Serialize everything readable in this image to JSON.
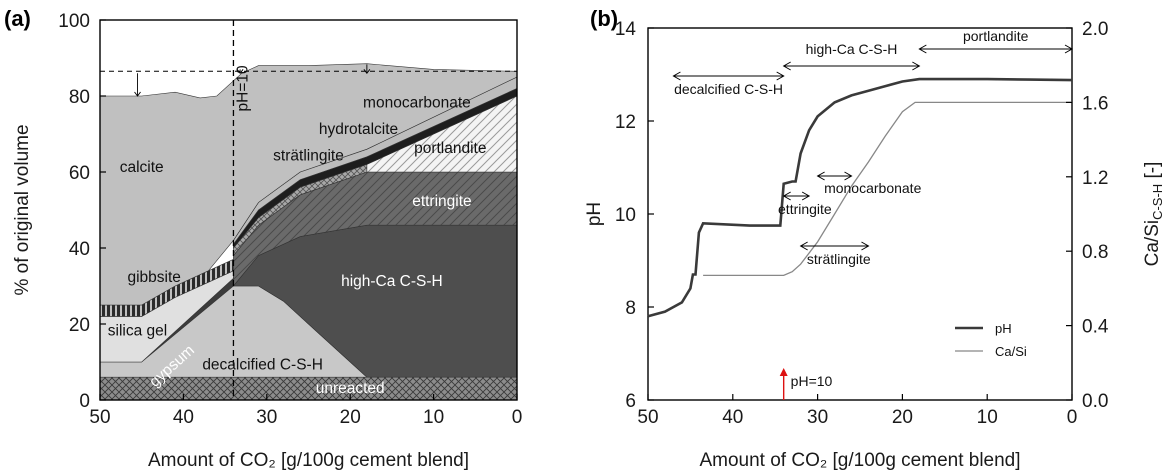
{
  "chart_data": [
    {
      "panel": "(a)",
      "type": "area",
      "xlabel": "Amount of CO₂ [g/100g cement blend]",
      "ylabel": "% of original volume",
      "xlim": [
        50,
        0
      ],
      "ylim": [
        0,
        100
      ],
      "x_ticks": [
        "50",
        "40",
        "30",
        "20",
        "10",
        "0"
      ],
      "y_ticks": [
        "0",
        "20",
        "40",
        "60",
        "80",
        "100"
      ],
      "vline": {
        "x": 34,
        "label": "pH=10"
      },
      "hline": {
        "y": 86.5,
        "from_x": 50,
        "to_x": 0
      },
      "layers": [
        {
          "name": "unreacted",
          "color": "#8c8c8c",
          "points": [
            [
              50,
              0
            ],
            [
              50,
              6
            ],
            [
              34,
              6
            ],
            [
              0,
              6
            ],
            [
              0,
              0
            ]
          ]
        },
        {
          "name": "gypsum",
          "color": "#3c3c3c",
          "points": [
            [
              50,
              6
            ],
            [
              45,
              6
            ],
            [
              34,
              6
            ],
            [
              34,
              32
            ],
            [
              45,
              10
            ],
            [
              50,
              10
            ]
          ]
        },
        {
          "name": "decalcified C-S-H",
          "color": "#c8c8c8",
          "points": [
            [
              50,
              10
            ],
            [
              45,
              10
            ],
            [
              34,
              30
            ],
            [
              31,
              30
            ],
            [
              28,
              26
            ],
            [
              24,
              18
            ],
            [
              20,
              10
            ],
            [
              18,
              6
            ],
            [
              0,
              6
            ],
            [
              34,
              6
            ],
            [
              50,
              6
            ]
          ]
        },
        {
          "name": "high-Ca C-S-H",
          "color": "#4e4e4e",
          "points": [
            [
              31,
              30
            ],
            [
              28,
              26
            ],
            [
              24,
              18
            ],
            [
              20,
              10
            ],
            [
              18,
              6
            ],
            [
              0,
              6
            ],
            [
              0,
              46
            ],
            [
              18,
              46
            ],
            [
              26,
              43
            ],
            [
              31,
              38
            ],
            [
              34,
              30
            ]
          ]
        },
        {
          "name": "silica gel",
          "color": "#e0e0e0",
          "points": [
            [
              50,
              10
            ],
            [
              50,
              22
            ],
            [
              45,
              22
            ],
            [
              41,
              27
            ],
            [
              37,
              31
            ],
            [
              34,
              34
            ],
            [
              34,
              32
            ],
            [
              45,
              10
            ]
          ]
        },
        {
          "name": "gibbsite",
          "color": "#2a2a2a",
          "points": [
            [
              50,
              22
            ],
            [
              50,
              25
            ],
            [
              45,
              25
            ],
            [
              41,
              30
            ],
            [
              37,
              34
            ],
            [
              34,
              37
            ],
            [
              34,
              34
            ],
            [
              37,
              31
            ],
            [
              41,
              27
            ],
            [
              45,
              22
            ]
          ]
        },
        {
          "name": "ettringite",
          "color": "#6e6e6e",
          "points": [
            [
              34,
              30
            ],
            [
              31,
              38
            ],
            [
              26,
              43
            ],
            [
              18,
              46
            ],
            [
              0,
              46
            ],
            [
              0,
              60
            ],
            [
              18,
              60
            ],
            [
              26,
              54
            ],
            [
              31,
              46
            ],
            [
              34,
              38
            ]
          ]
        },
        {
          "name": "strätlingite",
          "color": "#9a9a9a",
          "points": [
            [
              34,
              38
            ],
            [
              31,
              46
            ],
            [
              26,
              54
            ],
            [
              18,
              60
            ],
            [
              18,
              62
            ],
            [
              26,
              56
            ],
            [
              31,
              48
            ],
            [
              34,
              40
            ]
          ]
        },
        {
          "name": "portlandite",
          "color": "#f0f0f0",
          "points": [
            [
              18,
              60
            ],
            [
              0,
              60
            ],
            [
              0,
              80
            ],
            [
              18,
              62
            ]
          ]
        },
        {
          "name": "hydrotalcite",
          "color": "#1e1e1e",
          "points": [
            [
              34,
              40
            ],
            [
              31,
              48
            ],
            [
              26,
              56
            ],
            [
              18,
              62
            ],
            [
              0,
              80
            ],
            [
              0,
              82
            ],
            [
              18,
              64
            ],
            [
              26,
              58
            ],
            [
              31,
              50
            ],
            [
              34,
              41
            ]
          ]
        },
        {
          "name": "monocarbonate",
          "color": "#bdbdbd",
          "points": [
            [
              34,
              41
            ],
            [
              31,
              50
            ],
            [
              26,
              58
            ],
            [
              18,
              64
            ],
            [
              0,
              82
            ],
            [
              0,
              85
            ],
            [
              18,
              66
            ],
            [
              26,
              60
            ],
            [
              31,
              52
            ],
            [
              34,
              42
            ]
          ]
        },
        {
          "name": "calcite",
          "color": "#c0c0c0",
          "points": [
            [
              50,
              25
            ],
            [
              45,
              25
            ],
            [
              41,
              30
            ],
            [
              37,
              34
            ],
            [
              34,
              42
            ],
            [
              31,
              52
            ],
            [
              26,
              60
            ],
            [
              18,
              66
            ],
            [
              0,
              85
            ],
            [
              0,
              86.5
            ],
            [
              10,
              87
            ],
            [
              18,
              88.5
            ],
            [
              25,
              88
            ],
            [
              31,
              88
            ],
            [
              33,
              86
            ],
            [
              36,
              80
            ],
            [
              38,
              79.5
            ],
            [
              41,
              81
            ],
            [
              45,
              80
            ],
            [
              50,
              80
            ]
          ]
        }
      ]
    },
    {
      "panel": "(b)",
      "type": "line",
      "xlabel": "Amount of CO₂ [g/100g cement blend]",
      "ylabel": "pH",
      "y2label": "Ca/Si",
      "y2label_sub": "C-S-H",
      "y2label_suffix": " [-]",
      "xlim": [
        50,
        0
      ],
      "ylim": [
        6,
        14
      ],
      "y2lim": [
        0.0,
        2.0
      ],
      "x_ticks": [
        "50",
        "40",
        "30",
        "20",
        "10",
        "0"
      ],
      "y_ticks": [
        "6",
        "8",
        "10",
        "12",
        "14"
      ],
      "y2_ticks": [
        "0.0",
        "0.4",
        "0.8",
        "1.2",
        "1.6",
        "2.0"
      ],
      "series": [
        {
          "name": "pH",
          "axis": "left",
          "color": "#3a3a3a",
          "width": 2.6,
          "points": [
            [
              50,
              7.8
            ],
            [
              48,
              7.9
            ],
            [
              46,
              8.1
            ],
            [
              45,
              8.4
            ],
            [
              44.7,
              8.7
            ],
            [
              44.4,
              8.7
            ],
            [
              44,
              9.6
            ],
            [
              43.5,
              9.8
            ],
            [
              38,
              9.75
            ],
            [
              34.4,
              9.75
            ],
            [
              34,
              10.65
            ],
            [
              33,
              10.7
            ],
            [
              32.6,
              10.7
            ],
            [
              32,
              11.3
            ],
            [
              31,
              11.8
            ],
            [
              30,
              12.1
            ],
            [
              28,
              12.4
            ],
            [
              26,
              12.55
            ],
            [
              24,
              12.65
            ],
            [
              22,
              12.75
            ],
            [
              20,
              12.85
            ],
            [
              18,
              12.9
            ],
            [
              10,
              12.9
            ],
            [
              5,
              12.89
            ],
            [
              0,
              12.88
            ]
          ]
        },
        {
          "name": "Ca/Si",
          "axis": "right",
          "color": "#888888",
          "width": 1.3,
          "points": [
            [
              43.5,
              0.67
            ],
            [
              34,
              0.67
            ],
            [
              33,
              0.69
            ],
            [
              32,
              0.73
            ],
            [
              30,
              0.85
            ],
            [
              28,
              1.0
            ],
            [
              26,
              1.15
            ],
            [
              24,
              1.28
            ],
            [
              22,
              1.42
            ],
            [
              20,
              1.55
            ],
            [
              18.5,
              1.6
            ],
            [
              10,
              1.6
            ],
            [
              0,
              1.6
            ]
          ]
        }
      ],
      "annotations": [
        {
          "text": "decalcified  C-S-H",
          "x_from": 47,
          "x_to": 34
        },
        {
          "text": "high-Ca C-S-H",
          "x_from": 34,
          "x_to": 18
        },
        {
          "text": "portlandite",
          "x_from": 18,
          "x_to": 0
        },
        {
          "text": "ettringite",
          "x_from": 34,
          "x_to": 31
        },
        {
          "text": "monocarbonate",
          "x_from": 30,
          "x_to": 26
        },
        {
          "text": "strätlingite",
          "x_from": 32,
          "x_to": 24
        },
        {
          "text": "pH=10",
          "x": 34
        }
      ],
      "legend": [
        {
          "name": "pH"
        },
        {
          "name": "Ca/Si"
        }
      ]
    }
  ]
}
